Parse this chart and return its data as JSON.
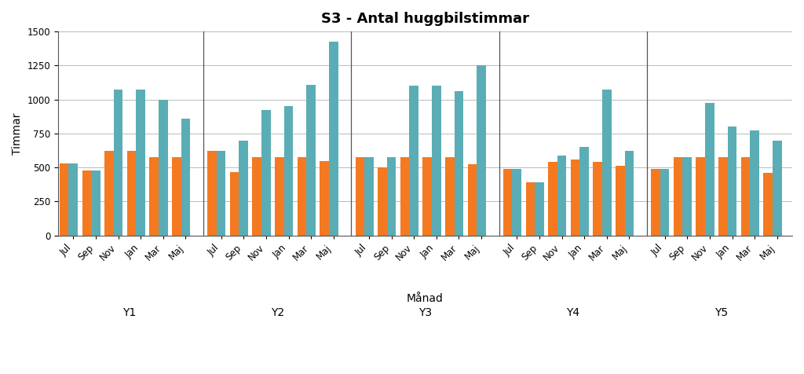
{
  "title": "S3 - Antal huggbilstimmar",
  "xlabel": "Månad",
  "ylabel": "Timmar",
  "ylim": [
    0,
    1500
  ],
  "yticks": [
    0,
    250,
    500,
    750,
    1000,
    1250,
    1500
  ],
  "years": [
    "Y1",
    "Y2",
    "Y3",
    "Y4",
    "Y5"
  ],
  "months": [
    "Jul",
    "Sep",
    "Nov",
    "Jan",
    "Mar",
    "Maj"
  ],
  "orange_color": "#F47920",
  "blue_color": "#5BADB5",
  "orange_values": [
    [
      530,
      475,
      625,
      625,
      575,
      575
    ],
    [
      625,
      465,
      575,
      575,
      575,
      550
    ],
    [
      575,
      500,
      575,
      575,
      575,
      525
    ],
    [
      490,
      390,
      540,
      560,
      540,
      510
    ],
    [
      490,
      575,
      575,
      575,
      575,
      460
    ]
  ],
  "blue_values": [
    [
      530,
      475,
      1075,
      1075,
      1000,
      860
    ],
    [
      625,
      700,
      920,
      950,
      1110,
      1425
    ],
    [
      575,
      575,
      1100,
      1100,
      1060,
      1250
    ],
    [
      490,
      390,
      590,
      650,
      1075,
      625
    ],
    [
      490,
      575,
      975,
      800,
      775,
      700
    ]
  ],
  "grid_color": "#bbbbbb",
  "title_fontsize": 13,
  "axis_fontsize": 10,
  "tick_fontsize": 8.5,
  "year_label_fontsize": 10
}
